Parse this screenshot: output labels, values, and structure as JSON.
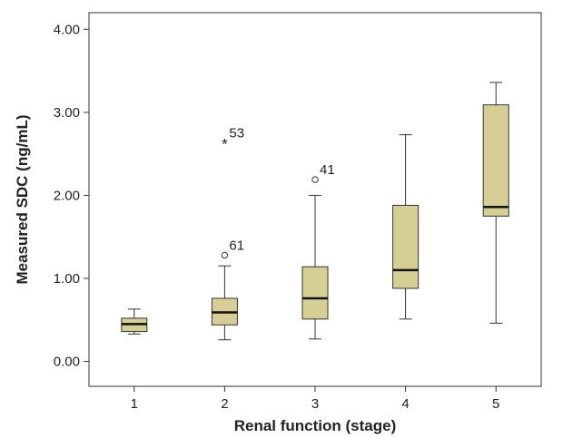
{
  "chart_data": {
    "type": "boxplot",
    "xlabel": "Renal function (stage)",
    "ylabel": "Measured SDC (ng/mL)",
    "ylim": [
      -0.3,
      4.2
    ],
    "yticks": [
      "0.00",
      "1.00",
      "2.00",
      "3.00",
      "4.00"
    ],
    "ytick_values": [
      0,
      1,
      2,
      3,
      4
    ],
    "categories": [
      "1",
      "2",
      "3",
      "4",
      "5"
    ],
    "box_color": "#d6cf95",
    "boxes": [
      {
        "category": "1",
        "min": 0.33,
        "q1": 0.36,
        "median": 0.45,
        "q3": 0.52,
        "max": 0.63
      },
      {
        "category": "2",
        "min": 0.26,
        "q1": 0.44,
        "median": 0.59,
        "q3": 0.76,
        "max": 1.15
      },
      {
        "category": "3",
        "min": 0.27,
        "q1": 0.51,
        "median": 0.76,
        "q3": 1.14,
        "max": 2.0
      },
      {
        "category": "4",
        "min": 0.51,
        "q1": 0.88,
        "median": 1.1,
        "q3": 1.88,
        "max": 2.73
      },
      {
        "category": "5",
        "min": 0.46,
        "q1": 1.75,
        "median": 1.86,
        "q3": 3.09,
        "max": 3.36
      }
    ],
    "outliers": [
      {
        "category": "2",
        "value": 2.63,
        "marker": "star",
        "label": "53"
      },
      {
        "category": "2",
        "value": 1.28,
        "marker": "circle",
        "label": "61"
      },
      {
        "category": "3",
        "value": 2.19,
        "marker": "circle",
        "label": "41"
      }
    ],
    "legend": "none",
    "grid": false
  }
}
